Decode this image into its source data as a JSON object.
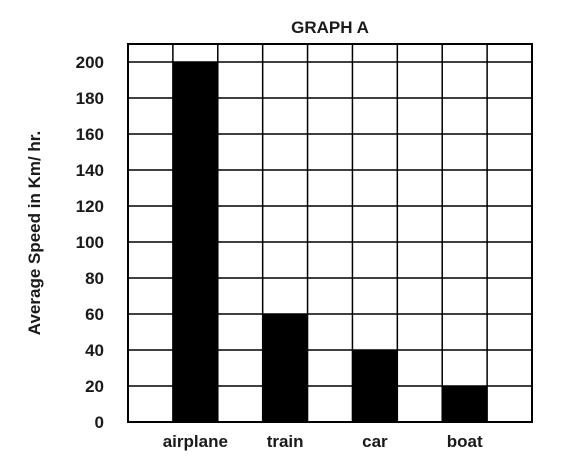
{
  "chart_data": {
    "type": "bar",
    "title": "GRAPH A",
    "xlabel": "",
    "ylabel": "Average Speed in Km/ hr.",
    "categories": [
      "airplane",
      "train",
      "car",
      "boat"
    ],
    "values": [
      200,
      60,
      40,
      20
    ],
    "ylim": [
      0,
      210
    ],
    "yticks": [
      0,
      20,
      40,
      60,
      80,
      100,
      120,
      140,
      160,
      180,
      200
    ],
    "grid": true,
    "bar_color": "#000000",
    "grid_color": "#000000"
  }
}
